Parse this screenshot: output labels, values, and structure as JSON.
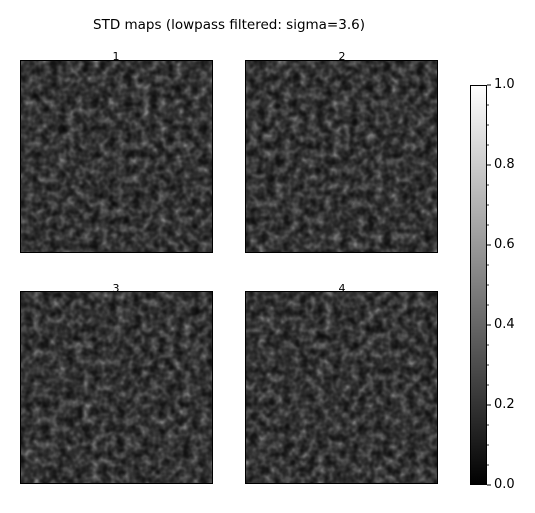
{
  "figure": {
    "title": "STD maps (lowpass filtered: sigma=3.6)"
  },
  "chart_data": [
    {
      "type": "heatmap",
      "title": "1",
      "colormap": "gray",
      "value_range": [
        0.0,
        1.0
      ],
      "appearance": "speckle noise texture, mostly dark (~0.05-0.35) with sparse bright spots up to ~0.8"
    },
    {
      "type": "heatmap",
      "title": "2",
      "colormap": "gray",
      "value_range": [
        0.0,
        1.0
      ],
      "appearance": "speckle noise texture, mostly dark (~0.05-0.35) with sparse bright spots up to ~0.8"
    },
    {
      "type": "heatmap",
      "title": "3",
      "colormap": "gray",
      "value_range": [
        0.0,
        1.0
      ],
      "appearance": "speckle noise texture, mostly dark (~0.05-0.35) with sparse bright spots up to ~0.8"
    },
    {
      "type": "heatmap",
      "title": "4",
      "colormap": "gray",
      "value_range": [
        0.0,
        1.0
      ],
      "appearance": "speckle noise texture, mostly dark (~0.05-0.35) with sparse bright spots up to ~0.8"
    }
  ],
  "colorbar": {
    "colormap": "gray",
    "range": [
      0.0,
      1.0
    ],
    "ticks": [
      0.0,
      0.2,
      0.4,
      0.6,
      0.8,
      1.0
    ],
    "tick_labels": [
      "0.0",
      "0.2",
      "0.4",
      "0.6",
      "0.8",
      "1.0"
    ],
    "minor_ticks": true,
    "colors": {
      "low": "#000000",
      "high": "#ffffff",
      "frame": "#000000"
    }
  }
}
